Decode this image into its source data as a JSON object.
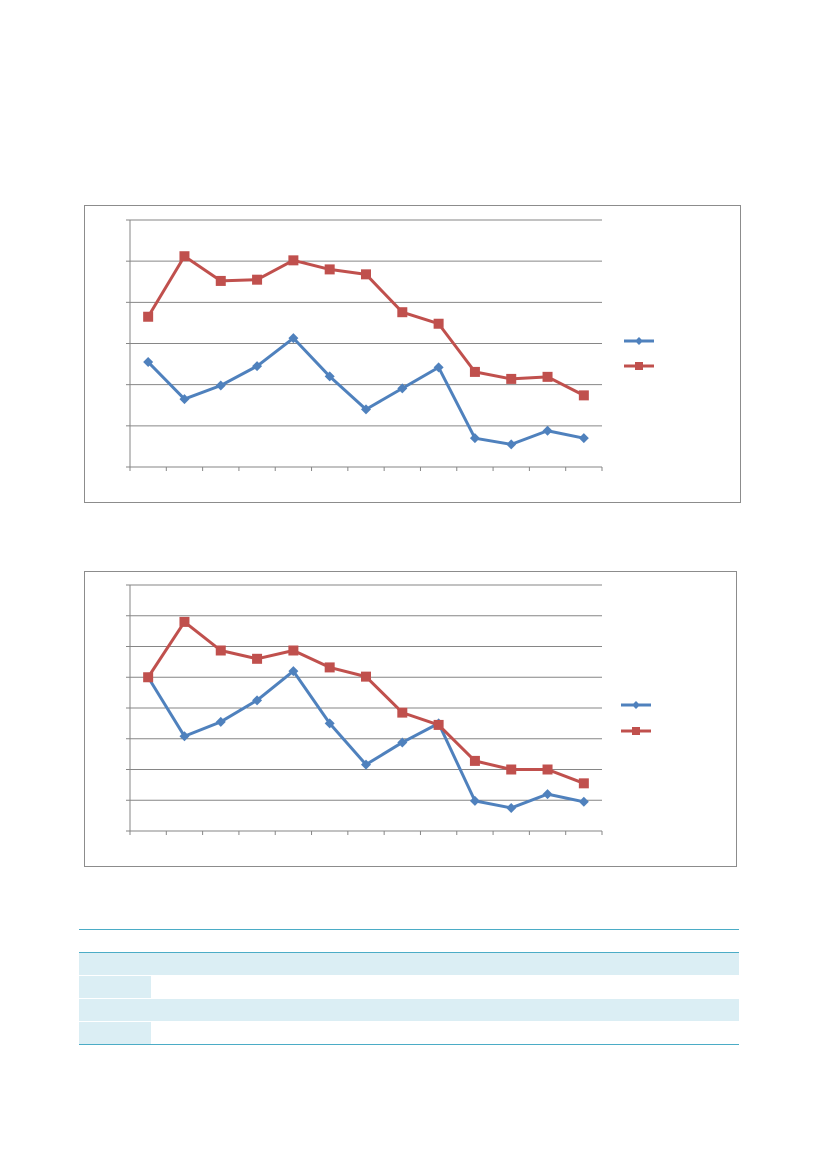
{
  "colors": {
    "series_a": "#4f81bd",
    "series_b": "#c0504d",
    "gridline": "#868686",
    "axis": "#868686",
    "table_accent": "#4bacc6",
    "table_fill": "#dbeef4"
  },
  "chart_data": [
    {
      "type": "line",
      "title": "",
      "xlabel": "",
      "ylabel": "",
      "x": [
        1,
        2,
        3,
        4,
        5,
        6,
        7,
        8,
        9,
        10,
        11,
        12,
        13
      ],
      "ylim": [
        0,
        6
      ],
      "grid": true,
      "legend": "right",
      "series": [
        {
          "marker": "diamond",
          "color": "#4f81bd",
          "values": [
            2.55,
            1.65,
            1.98,
            2.45,
            3.13,
            2.2,
            1.4,
            1.91,
            2.42,
            0.7,
            0.55,
            0.88,
            0.7
          ]
        },
        {
          "marker": "square",
          "color": "#c0504d",
          "values": [
            3.65,
            5.12,
            4.52,
            4.55,
            5.02,
            4.8,
            4.68,
            3.76,
            3.48,
            2.31,
            2.14,
            2.19,
            1.74
          ]
        }
      ]
    },
    {
      "type": "line",
      "title": "",
      "xlabel": "",
      "ylabel": "",
      "x": [
        1,
        2,
        3,
        4,
        5,
        6,
        7,
        8,
        9,
        10,
        11,
        12,
        13
      ],
      "ylim": [
        0,
        8
      ],
      "grid": true,
      "legend": "right",
      "series": [
        {
          "marker": "diamond",
          "color": "#4f81bd",
          "values": [
            5.0,
            3.08,
            3.55,
            4.25,
            5.2,
            3.5,
            2.16,
            2.88,
            3.5,
            0.98,
            0.75,
            1.2,
            0.95
          ]
        },
        {
          "marker": "square",
          "color": "#c0504d",
          "values": [
            5.0,
            6.8,
            5.87,
            5.6,
            5.87,
            5.32,
            5.02,
            3.85,
            3.45,
            2.28,
            2.0,
            2.0,
            1.55
          ]
        }
      ]
    }
  ],
  "table": {
    "column_count": 17,
    "row_count": 4
  }
}
